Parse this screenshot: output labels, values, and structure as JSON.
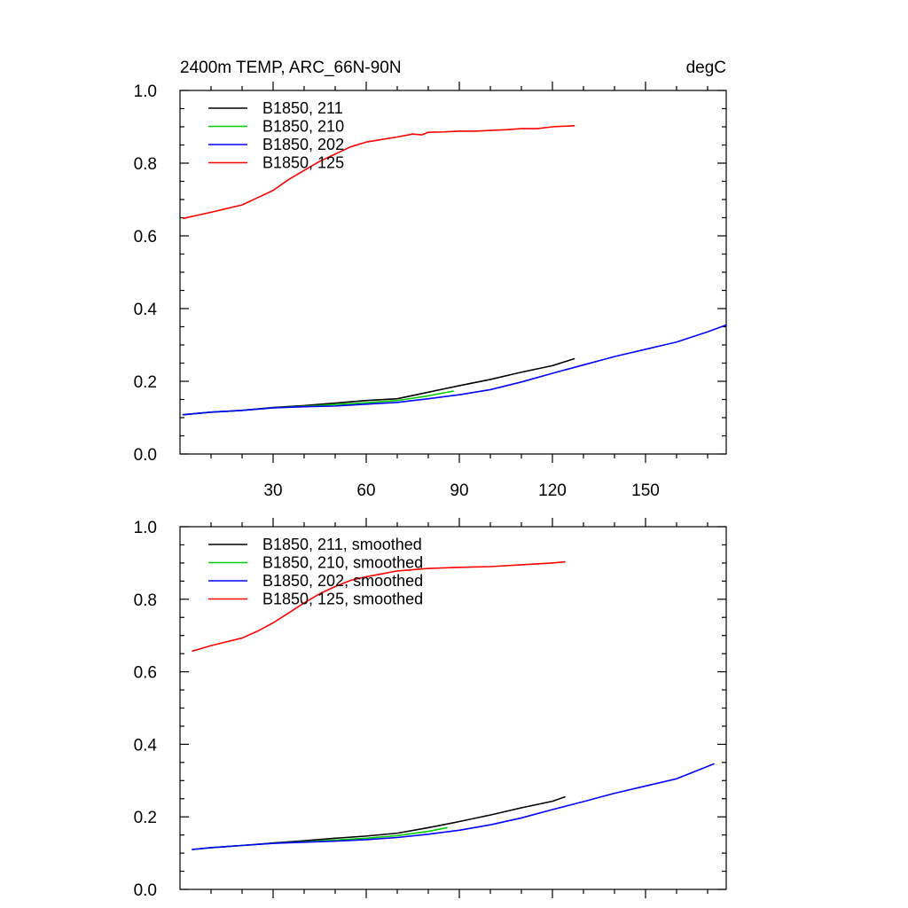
{
  "colors": {
    "black": "#000000",
    "green": "#00cc00",
    "blue": "#0000ff",
    "red": "#ff0000"
  },
  "chart_data": [
    {
      "type": "line",
      "title": "2400m TEMP, ARC_66N-90N",
      "units": "degC",
      "xlabel": "",
      "ylabel": "",
      "xlim": [
        0,
        176
      ],
      "ylim": [
        0,
        1.0
      ],
      "x_ticks": [
        30,
        60,
        90,
        120,
        150
      ],
      "x_tick_labels": [
        "30",
        "60",
        "90",
        "120",
        "150"
      ],
      "y_ticks": [
        0,
        0.2,
        0.4,
        0.6,
        0.8,
        1.0
      ],
      "y_tick_labels": [
        "0.0",
        "0.2",
        "0.4",
        "0.6",
        "0.8",
        "1.0"
      ],
      "legend_position": "top-left",
      "series": [
        {
          "name": "B1850, 211",
          "color": "#000000",
          "x": [
            1,
            10,
            20,
            30,
            40,
            50,
            60,
            70,
            80,
            90,
            100,
            110,
            120,
            127
          ],
          "y": [
            0.108,
            0.115,
            0.12,
            0.128,
            0.133,
            0.14,
            0.147,
            0.152,
            0.17,
            0.188,
            0.205,
            0.225,
            0.243,
            0.262
          ]
        },
        {
          "name": "B1850, 210",
          "color": "#00cc00",
          "x": [
            1,
            10,
            20,
            30,
            40,
            50,
            60,
            70,
            80,
            88
          ],
          "y": [
            0.108,
            0.115,
            0.12,
            0.127,
            0.131,
            0.136,
            0.141,
            0.147,
            0.16,
            0.173
          ]
        },
        {
          "name": "B1850, 202",
          "color": "#0000ff",
          "x": [
            1,
            10,
            20,
            30,
            40,
            50,
            60,
            70,
            80,
            90,
            100,
            110,
            120,
            130,
            140,
            150,
            160,
            170,
            176
          ],
          "y": [
            0.108,
            0.115,
            0.12,
            0.127,
            0.13,
            0.132,
            0.137,
            0.142,
            0.152,
            0.163,
            0.177,
            0.198,
            0.222,
            0.245,
            0.268,
            0.288,
            0.308,
            0.336,
            0.355
          ]
        },
        {
          "name": "B1850, 125",
          "color": "#ff0000",
          "x": [
            1,
            10,
            20,
            25,
            30,
            35,
            40,
            45,
            50,
            55,
            60,
            65,
            70,
            75,
            78,
            80,
            85,
            90,
            95,
            100,
            105,
            110,
            115,
            120,
            127
          ],
          "y": [
            0.648,
            0.665,
            0.685,
            0.705,
            0.725,
            0.755,
            0.78,
            0.805,
            0.825,
            0.845,
            0.858,
            0.865,
            0.872,
            0.88,
            0.878,
            0.885,
            0.886,
            0.888,
            0.888,
            0.89,
            0.892,
            0.895,
            0.895,
            0.9,
            0.903
          ]
        }
      ]
    },
    {
      "type": "line",
      "title": "",
      "units": "",
      "xlabel": "",
      "ylabel": "",
      "xlim": [
        0,
        176
      ],
      "ylim": [
        0,
        1.0
      ],
      "x_ticks": [
        30,
        60,
        90,
        120,
        150
      ],
      "x_tick_labels": [],
      "y_ticks": [
        0,
        0.2,
        0.4,
        0.6,
        0.8,
        1.0
      ],
      "y_tick_labels": [
        "0.0",
        "0.2",
        "0.4",
        "0.6",
        "0.8",
        "1.0"
      ],
      "legend_position": "top-left",
      "series": [
        {
          "name": "B1850, 211, smoothed",
          "color": "#000000",
          "x": [
            4,
            10,
            20,
            30,
            40,
            50,
            60,
            70,
            80,
            90,
            100,
            110,
            120,
            124
          ],
          "y": [
            0.11,
            0.115,
            0.121,
            0.128,
            0.134,
            0.141,
            0.147,
            0.155,
            0.17,
            0.187,
            0.205,
            0.225,
            0.243,
            0.255
          ]
        },
        {
          "name": "B1850, 210, smoothed",
          "color": "#00cc00",
          "x": [
            4,
            10,
            20,
            30,
            40,
            50,
            60,
            70,
            80,
            86
          ],
          "y": [
            0.11,
            0.115,
            0.121,
            0.127,
            0.131,
            0.136,
            0.141,
            0.148,
            0.16,
            0.17
          ]
        },
        {
          "name": "B1850, 202, smoothed",
          "color": "#0000ff",
          "x": [
            4,
            10,
            20,
            30,
            40,
            50,
            60,
            70,
            80,
            90,
            100,
            110,
            120,
            130,
            140,
            150,
            160,
            172
          ],
          "y": [
            0.11,
            0.115,
            0.121,
            0.127,
            0.13,
            0.133,
            0.137,
            0.143,
            0.152,
            0.163,
            0.178,
            0.197,
            0.22,
            0.242,
            0.265,
            0.285,
            0.305,
            0.346
          ]
        },
        {
          "name": "B1850, 125, smoothed",
          "color": "#ff0000",
          "x": [
            4,
            10,
            20,
            25,
            30,
            35,
            40,
            45,
            50,
            55,
            60,
            65,
            70,
            80,
            90,
            100,
            110,
            120,
            124
          ],
          "y": [
            0.657,
            0.672,
            0.693,
            0.712,
            0.735,
            0.762,
            0.79,
            0.815,
            0.835,
            0.852,
            0.862,
            0.87,
            0.878,
            0.885,
            0.888,
            0.89,
            0.895,
            0.9,
            0.903
          ]
        }
      ]
    }
  ]
}
